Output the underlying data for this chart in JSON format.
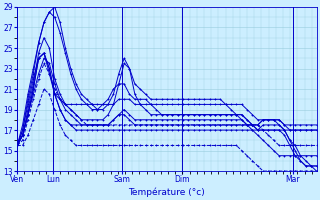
{
  "xlabel": "Température (°c)",
  "ylim": [
    13,
    29
  ],
  "yticks": [
    13,
    15,
    17,
    19,
    21,
    23,
    25,
    27,
    29
  ],
  "bg_color": "#cceeff",
  "grid_color": "#99ccdd",
  "line_color": "#0000cc",
  "x_tick_pos": [
    0.0,
    0.12,
    0.35,
    0.55,
    0.92
  ],
  "x_tick_labels": [
    "Ven",
    "Lun",
    "Sam",
    "Dim",
    "Mar"
  ],
  "series": [
    {
      "y": [
        15.5,
        16.5,
        18.5,
        21.0,
        24.0,
        24.5,
        23.0,
        20.5,
        19.0,
        18.0,
        17.5,
        17.0,
        17.0,
        17.0,
        17.0,
        17.0,
        17.0,
        17.0,
        17.0,
        17.0,
        17.0,
        17.0,
        17.0,
        17.0,
        17.0,
        17.0,
        17.0,
        17.0,
        17.0,
        17.0,
        17.0,
        17.0,
        17.0,
        17.0,
        17.0,
        17.0,
        17.0,
        17.0,
        17.0,
        17.0,
        17.0,
        17.0,
        17.0,
        17.0,
        17.0,
        17.0,
        17.5,
        17.5,
        17.5,
        17.5,
        17.0,
        16.0,
        15.5,
        14.5,
        14.0,
        13.5,
        13.0
      ],
      "dashed": false
    },
    {
      "y": [
        15.5,
        16.5,
        18.5,
        21.0,
        24.0,
        24.5,
        23.0,
        20.5,
        19.0,
        18.0,
        17.5,
        17.5,
        17.5,
        17.5,
        17.5,
        17.5,
        17.5,
        17.5,
        18.0,
        18.5,
        18.5,
        18.0,
        17.5,
        17.5,
        17.5,
        17.5,
        17.5,
        17.5,
        17.5,
        17.5,
        17.5,
        17.5,
        17.5,
        17.5,
        17.5,
        17.5,
        17.5,
        17.5,
        17.5,
        17.5,
        17.5,
        17.5,
        17.5,
        17.5,
        17.5,
        17.5,
        18.0,
        18.0,
        18.0,
        17.5,
        17.0,
        16.0,
        15.0,
        14.0,
        13.5,
        13.5,
        13.5
      ],
      "dashed": false
    },
    {
      "y": [
        15.5,
        16.5,
        19.0,
        21.5,
        24.5,
        26.0,
        25.0,
        22.0,
        20.5,
        19.5,
        19.0,
        18.5,
        18.0,
        18.0,
        18.0,
        18.0,
        18.0,
        18.5,
        19.5,
        21.5,
        23.5,
        23.0,
        20.5,
        19.5,
        19.0,
        18.5,
        18.5,
        18.5,
        18.5,
        18.5,
        18.5,
        18.5,
        18.5,
        18.5,
        18.5,
        18.5,
        18.5,
        18.5,
        18.5,
        18.5,
        18.5,
        18.5,
        18.5,
        18.0,
        17.5,
        17.0,
        17.0,
        17.0,
        17.0,
        17.0,
        16.5,
        15.5,
        14.5,
        14.0,
        13.5,
        13.5,
        13.5
      ],
      "dashed": false
    },
    {
      "y": [
        15.5,
        17.0,
        19.5,
        22.0,
        24.0,
        24.5,
        22.5,
        20.5,
        20.0,
        19.5,
        19.5,
        19.5,
        19.5,
        19.5,
        19.5,
        19.5,
        19.5,
        19.5,
        19.5,
        20.0,
        20.0,
        20.0,
        19.5,
        19.5,
        19.5,
        19.5,
        19.5,
        19.5,
        19.5,
        19.5,
        19.5,
        19.5,
        19.5,
        19.5,
        19.5,
        19.5,
        19.5,
        19.5,
        19.5,
        19.5,
        19.5,
        19.5,
        19.5,
        19.0,
        18.5,
        18.0,
        18.0,
        18.0,
        18.0,
        18.0,
        17.5,
        17.0,
        17.0,
        17.0,
        17.0,
        17.0,
        17.0
      ],
      "dashed": false
    },
    {
      "y": [
        15.5,
        17.0,
        20.0,
        22.5,
        25.5,
        27.5,
        28.5,
        29.0,
        27.5,
        25.0,
        23.0,
        21.5,
        20.5,
        20.0,
        19.5,
        19.0,
        19.0,
        19.5,
        20.5,
        22.5,
        24.0,
        23.0,
        21.5,
        21.0,
        20.5,
        20.0,
        20.0,
        20.0,
        20.0,
        20.0,
        20.0,
        20.0,
        20.0,
        20.0,
        20.0,
        20.0,
        20.0,
        20.0,
        20.0,
        19.5,
        19.0,
        18.5,
        18.0,
        17.5,
        17.5,
        17.5,
        18.0,
        18.0,
        18.0,
        18.0,
        17.5,
        17.5,
        17.5,
        17.5,
        17.5,
        17.5,
        17.5
      ],
      "dashed": false
    },
    {
      "y": [
        15.5,
        17.5,
        20.5,
        23.0,
        25.5,
        27.5,
        28.5,
        28.0,
        26.5,
        24.5,
        22.5,
        21.0,
        20.0,
        19.5,
        19.0,
        19.0,
        19.5,
        20.0,
        21.0,
        21.5,
        21.5,
        20.5,
        20.0,
        20.0,
        20.0,
        19.5,
        19.0,
        18.5,
        18.5,
        18.5,
        18.5,
        18.5,
        18.5,
        18.5,
        18.5,
        18.5,
        18.5,
        18.5,
        18.5,
        18.5,
        18.5,
        18.5,
        18.5,
        18.0,
        17.5,
        17.0,
        17.0,
        17.0,
        17.0,
        17.0,
        17.0,
        17.0,
        17.0,
        17.0,
        17.0,
        17.0,
        17.0
      ],
      "dashed": false
    },
    {
      "y": [
        15.5,
        16.5,
        18.5,
        20.5,
        22.5,
        24.0,
        23.5,
        21.5,
        20.0,
        19.0,
        18.5,
        18.0,
        17.5,
        17.5,
        17.5,
        17.5,
        17.5,
        17.5,
        18.0,
        18.5,
        19.0,
        18.5,
        18.0,
        18.0,
        18.0,
        18.0,
        18.0,
        18.0,
        18.0,
        18.0,
        18.0,
        18.0,
        18.0,
        18.0,
        18.0,
        18.0,
        18.0,
        18.0,
        18.0,
        18.0,
        18.0,
        18.0,
        18.0,
        17.5,
        17.0,
        16.5,
        16.0,
        15.5,
        15.0,
        14.5,
        14.5,
        14.5,
        14.5,
        14.5,
        14.5,
        14.5,
        14.5
      ],
      "dashed": false
    },
    {
      "y": [
        15.5,
        16.0,
        18.0,
        20.0,
        22.0,
        23.5,
        22.5,
        21.0,
        20.0,
        19.5,
        19.0,
        18.5,
        18.0,
        17.5,
        17.5,
        17.5,
        17.5,
        17.5,
        17.5,
        17.5,
        17.5,
        17.5,
        17.5,
        17.5,
        17.5,
        17.5,
        17.5,
        17.5,
        17.5,
        17.5,
        17.5,
        17.5,
        17.5,
        17.5,
        17.5,
        17.5,
        17.5,
        17.5,
        17.5,
        17.5,
        17.5,
        17.5,
        17.5,
        17.5,
        17.5,
        17.5,
        17.0,
        16.5,
        16.0,
        15.5,
        15.5,
        15.5,
        15.5,
        15.5,
        15.5,
        15.5,
        15.5
      ],
      "dashed": true
    },
    {
      "y": [
        15.5,
        15.5,
        16.5,
        18.0,
        19.5,
        21.0,
        20.5,
        19.0,
        17.5,
        16.5,
        16.0,
        15.5,
        15.5,
        15.5,
        15.5,
        15.5,
        15.5,
        15.5,
        15.5,
        15.5,
        15.5,
        15.5,
        15.5,
        15.5,
        15.5,
        15.5,
        15.5,
        15.5,
        15.5,
        15.5,
        15.5,
        15.5,
        15.5,
        15.5,
        15.5,
        15.5,
        15.5,
        15.5,
        15.5,
        15.5,
        15.5,
        15.5,
        15.0,
        14.5,
        14.0,
        13.5,
        13.0,
        13.0,
        13.0,
        13.0,
        13.0,
        13.0,
        13.0,
        13.0,
        13.0,
        13.0,
        13.0
      ],
      "dashed": true
    }
  ],
  "n_points": 57
}
